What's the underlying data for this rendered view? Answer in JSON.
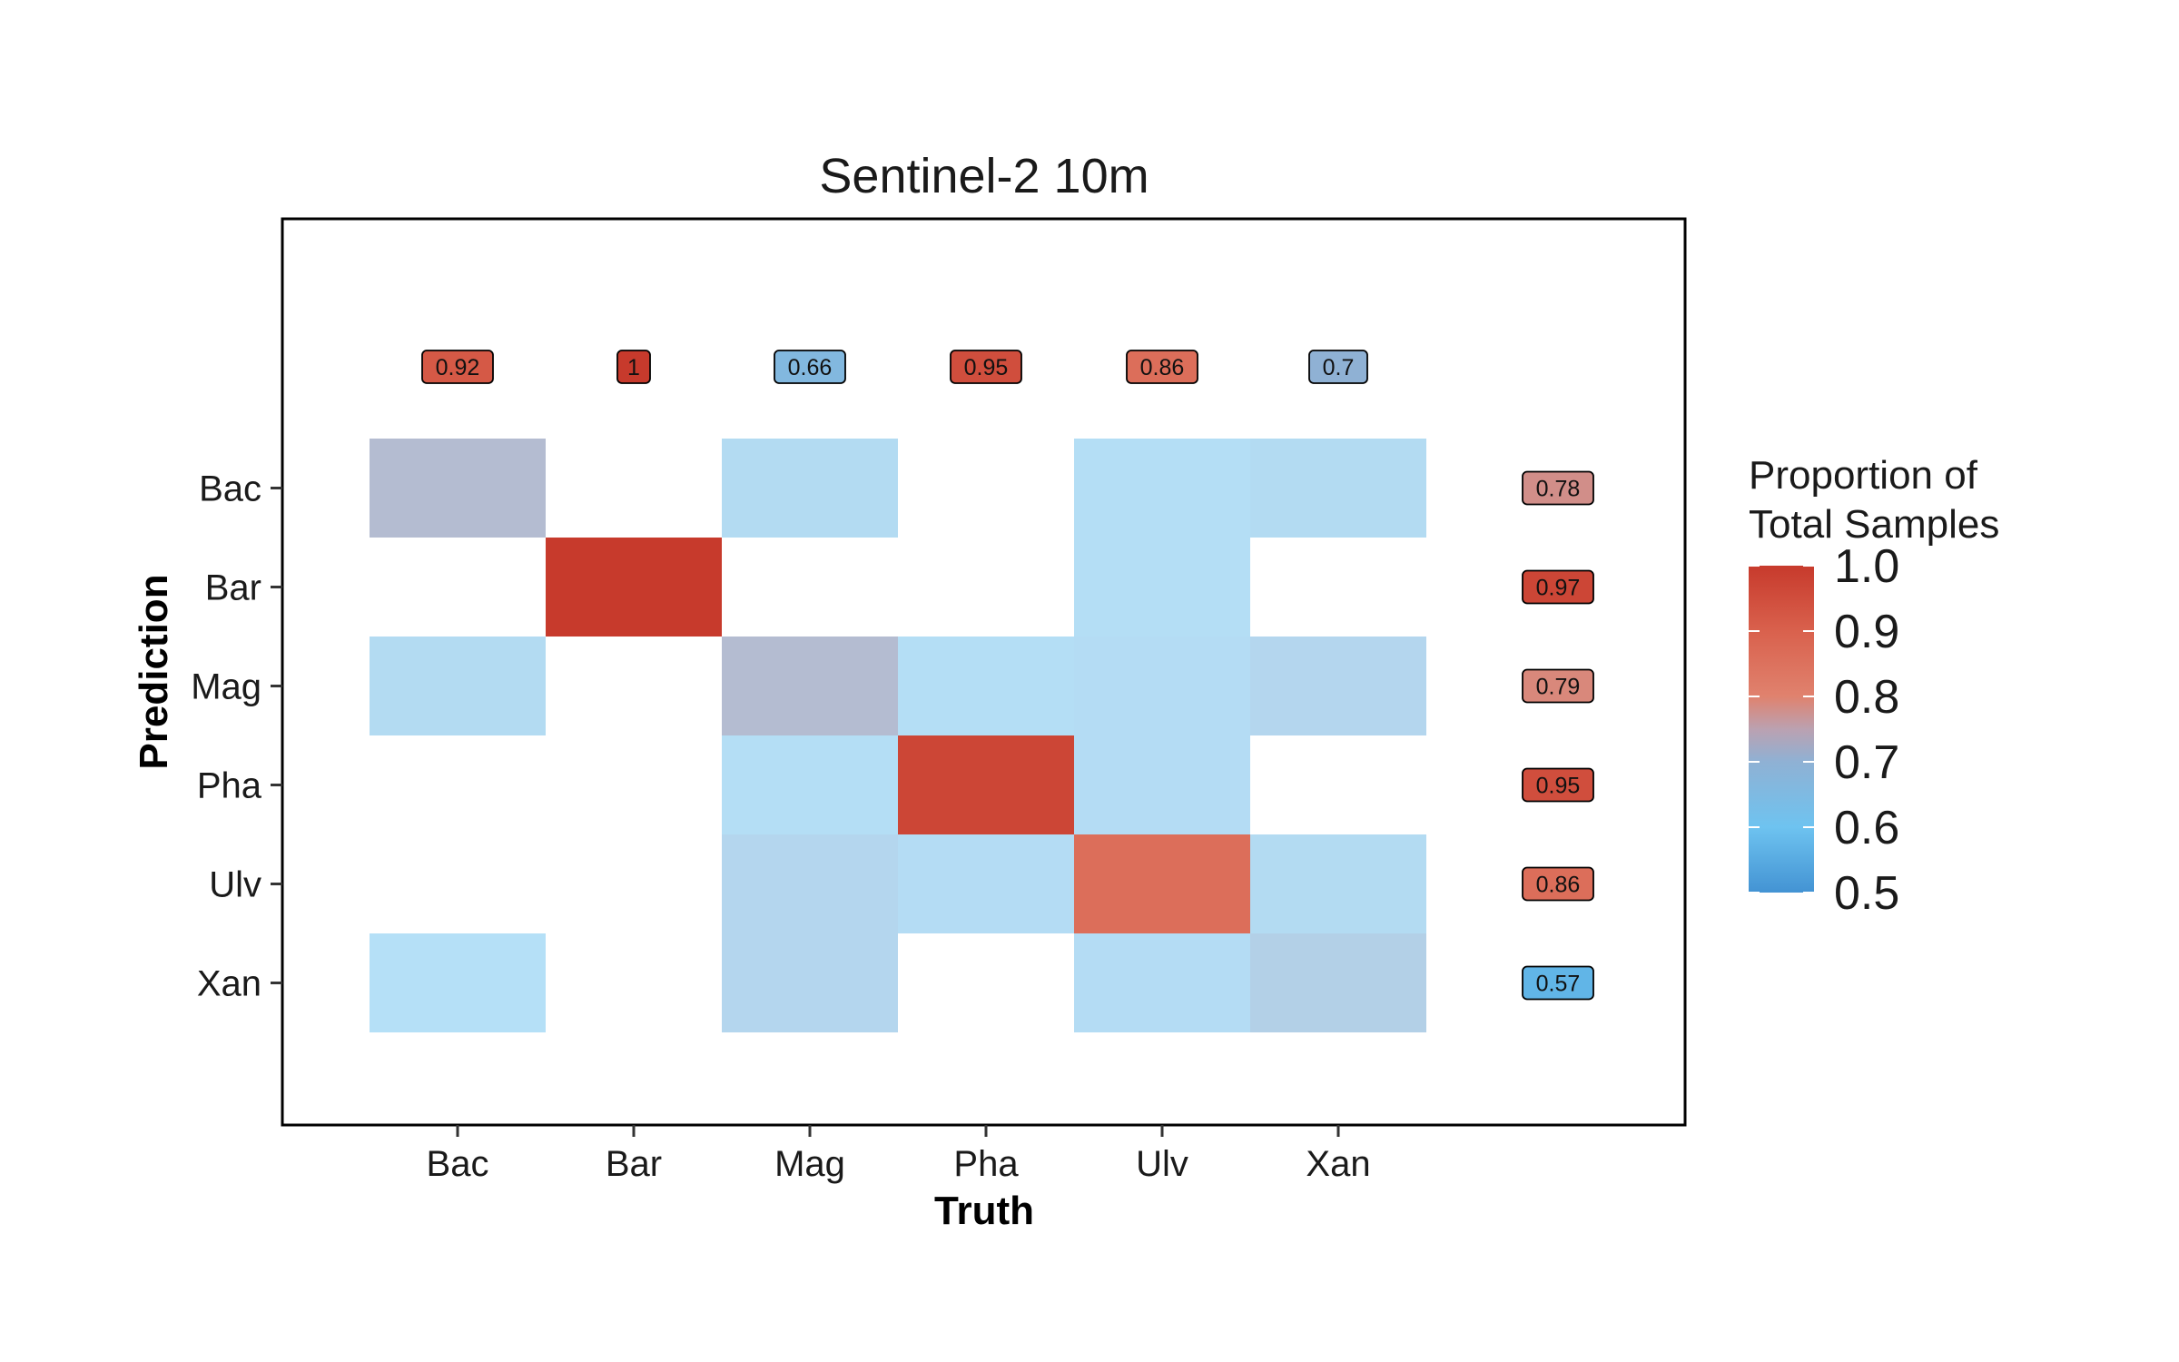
{
  "chart_data": {
    "type": "heatmap",
    "title": "Sentinel-2 10m",
    "xlabel": "Truth",
    "ylabel": "Prediction",
    "x_categories": [
      "Bac",
      "Bar",
      "Mag",
      "Pha",
      "Ulv",
      "Xan"
    ],
    "y_categories": [
      "Bac",
      "Bar",
      "Mag",
      "Pha",
      "Ulv",
      "Xan"
    ],
    "cells": [
      {
        "truth": "Bac",
        "prediction": "Bac",
        "value": 0.72
      },
      {
        "truth": "Mag",
        "prediction": "Bac",
        "value": 0.63
      },
      {
        "truth": "Ulv",
        "prediction": "Bac",
        "value": 0.61
      },
      {
        "truth": "Xan",
        "prediction": "Bac",
        "value": 0.63
      },
      {
        "truth": "Bar",
        "prediction": "Bar",
        "value": 1.0
      },
      {
        "truth": "Ulv",
        "prediction": "Bar",
        "value": 0.61
      },
      {
        "truth": "Bac",
        "prediction": "Mag",
        "value": 0.63
      },
      {
        "truth": "Mag",
        "prediction": "Mag",
        "value": 0.72
      },
      {
        "truth": "Pha",
        "prediction": "Mag",
        "value": 0.61
      },
      {
        "truth": "Ulv",
        "prediction": "Mag",
        "value": 0.62
      },
      {
        "truth": "Xan",
        "prediction": "Mag",
        "value": 0.65
      },
      {
        "truth": "Mag",
        "prediction": "Pha",
        "value": 0.61
      },
      {
        "truth": "Pha",
        "prediction": "Pha",
        "value": 0.97
      },
      {
        "truth": "Ulv",
        "prediction": "Pha",
        "value": 0.62
      },
      {
        "truth": "Mag",
        "prediction": "Ulv",
        "value": 0.65
      },
      {
        "truth": "Pha",
        "prediction": "Ulv",
        "value": 0.62
      },
      {
        "truth": "Ulv",
        "prediction": "Ulv",
        "value": 0.86
      },
      {
        "truth": "Xan",
        "prediction": "Ulv",
        "value": 0.63
      },
      {
        "truth": "Bac",
        "prediction": "Xan",
        "value": 0.6
      },
      {
        "truth": "Mag",
        "prediction": "Xan",
        "value": 0.65
      },
      {
        "truth": "Ulv",
        "prediction": "Xan",
        "value": 0.62
      },
      {
        "truth": "Xan",
        "prediction": "Xan",
        "value": 0.68
      }
    ],
    "column_labels": [
      {
        "category": "Bac",
        "label": "0.92",
        "value": 0.92
      },
      {
        "category": "Bar",
        "label": "1",
        "value": 1.0
      },
      {
        "category": "Mag",
        "label": "0.66",
        "value": 0.66
      },
      {
        "category": "Pha",
        "label": "0.95",
        "value": 0.95
      },
      {
        "category": "Ulv",
        "label": "0.86",
        "value": 0.86
      },
      {
        "category": "Xan",
        "label": "0.7",
        "value": 0.7
      }
    ],
    "row_labels": [
      {
        "category": "Bac",
        "label": "0.78",
        "value": 0.78
      },
      {
        "category": "Bar",
        "label": "0.97",
        "value": 0.97
      },
      {
        "category": "Mag",
        "label": "0.79",
        "value": 0.79
      },
      {
        "category": "Pha",
        "label": "0.95",
        "value": 0.95
      },
      {
        "category": "Ulv",
        "label": "0.86",
        "value": 0.86
      },
      {
        "category": "Xan",
        "label": "0.57",
        "value": 0.57
      }
    ],
    "legend": {
      "title_lines": [
        "Proportion of",
        "Total Samples"
      ],
      "range": [
        0.5,
        1.0
      ],
      "ticks": [
        "0.5",
        "0.6",
        "0.7",
        "0.8",
        "0.9",
        "1.0"
      ],
      "placement": "right"
    },
    "grid": false,
    "colors": {
      "c050": "#4393d3",
      "c060": "#6ec3f0",
      "c070": "#8fb1d4",
      "c075": "#bba1b1",
      "c080": "#e0826e",
      "c090": "#d9614d",
      "c100": "#c73a2c"
    }
  }
}
